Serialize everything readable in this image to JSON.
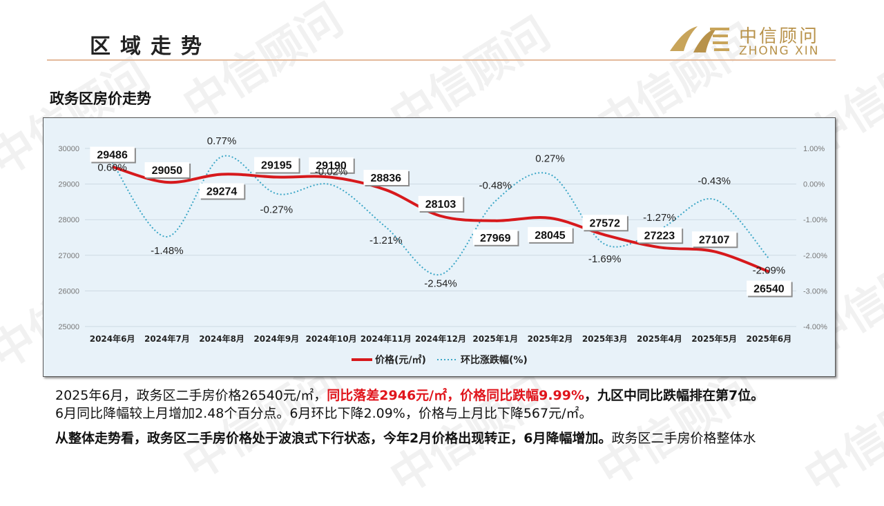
{
  "header": {
    "title": "区域走势"
  },
  "logo": {
    "cn": "中信顾问",
    "en": "ZHONG XIN"
  },
  "watermark_text": "中信顾问",
  "section_title": "政务区房价走势",
  "chart_data": {
    "type": "line",
    "categories": [
      "2024年6月",
      "2024年7月",
      "2024年8月",
      "2024年9月",
      "2024年10月",
      "2024年11月",
      "2024年12月",
      "2025年1月",
      "2025年2月",
      "2025年3月",
      "2025年4月",
      "2025年5月",
      "2025年6月"
    ],
    "series": [
      {
        "name": "价格(元/㎡)",
        "axis": "left",
        "color": "#d7191c",
        "style": "solid",
        "values": [
          29486,
          29050,
          29274,
          29195,
          29190,
          28836,
          28103,
          27969,
          28045,
          27572,
          27223,
          27107,
          26540
        ],
        "labels": [
          "29486",
          "29050",
          "29274",
          "29195",
          "29190",
          "28836",
          "28103",
          "27969",
          "28045",
          "27572",
          "27223",
          "27107",
          "26540"
        ]
      },
      {
        "name": "环比涨跌幅(%)",
        "axis": "right",
        "color": "#3aa6c6",
        "style": "dotted",
        "values": [
          0.6,
          -1.48,
          0.77,
          -0.27,
          -0.02,
          -1.21,
          -2.54,
          -0.48,
          0.27,
          -1.69,
          -1.27,
          -0.43,
          -2.09
        ],
        "labels": [
          "0.60%",
          "-1.48%",
          "0.77%",
          "-0.27%",
          "-0.02%",
          "-1.21%",
          "-2.54%",
          "-0.48%",
          "0.27%",
          "-1.69%",
          "-1.27%",
          "-0.43%",
          "-2.09%"
        ]
      }
    ],
    "y_left": {
      "min": 25000,
      "max": 30000,
      "ticks": [
        "25000",
        "26000",
        "27000",
        "28000",
        "29000",
        "30000"
      ]
    },
    "y_right": {
      "min": -4,
      "max": 1,
      "ticks": [
        "-4.00%",
        "-3.00%",
        "-2.00%",
        "-1.00%",
        "0.00%",
        "1.00%"
      ]
    },
    "grid": true,
    "legend_position": "bottom"
  },
  "paragraph1": {
    "line1_a": "2025年6月，政务区二手房价格26540元/㎡，",
    "line1_b": "同比落差2946元/㎡，价格同比跌幅9.99%",
    "line1_c": "，九区中同比跌幅排在第7位。",
    "line2": "6月同比降幅较上月增加2.48个百分点。6月环比下降2.09%，价格与上月比下降567元/㎡。"
  },
  "paragraph2": {
    "bold": "从整体走势看，政务区二手房价格处于波浪式下行状态，今年2月价格出现转正，6月降幅增加。",
    "normal": "政务区二手房价格整体水"
  }
}
